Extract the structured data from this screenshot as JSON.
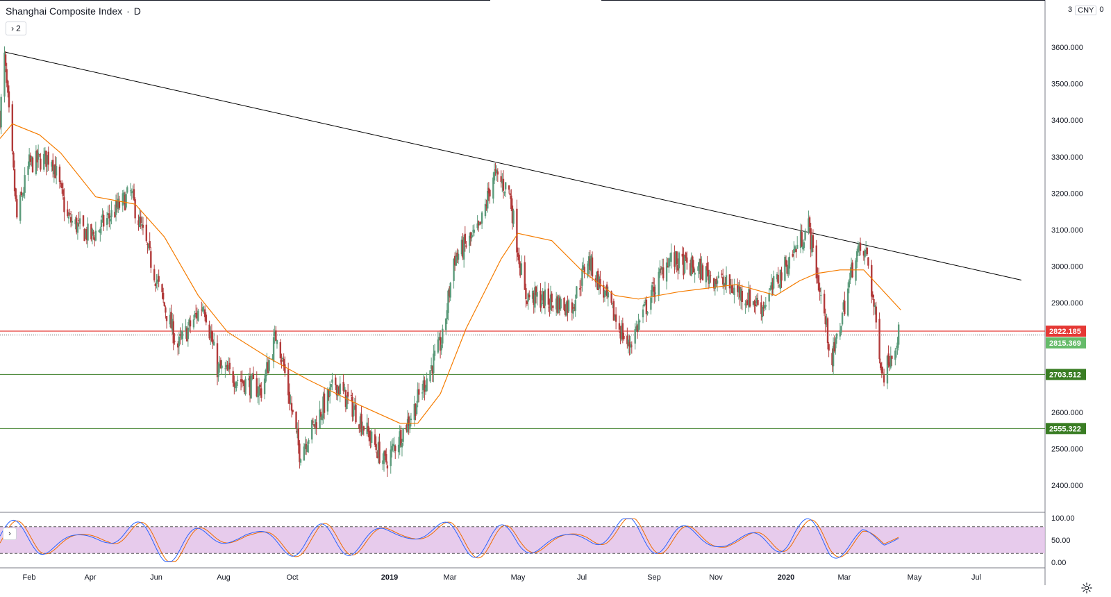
{
  "header": {
    "symbol_name": "Shanghai Composite Index",
    "separator": "·",
    "interval": "D",
    "legend_toggle_label": "2",
    "currency_prefix": "3",
    "currency": "CNY",
    "currency_suffix": "0"
  },
  "colors": {
    "up": "#26a69a",
    "down": "#ef5350",
    "up_body": "#5b9a7a",
    "down_body": "#b23a3a",
    "ma": "#f57c00",
    "trendline": "#000000",
    "resistance": "#e53935",
    "support": "#3a7d24",
    "last_price_tag": "#66bb6a",
    "stoch_bg": "#e1bee7",
    "stoch_k": "#2962ff",
    "stoch_d": "#ef6c00"
  },
  "price_axis": {
    "ticks": [
      "3600.000",
      "3500.000",
      "3400.000",
      "3300.000",
      "3200.000",
      "3100.000",
      "3000.000",
      "2900.000",
      "2600.000",
      "2500.000",
      "2400.000"
    ],
    "range": [
      2340,
      3700
    ]
  },
  "price_tags": [
    {
      "value": "2822.185",
      "type": "resistance"
    },
    {
      "value": "2815.369",
      "type": "last"
    },
    {
      "value": "2703.512",
      "type": "support"
    },
    {
      "value": "2555.322",
      "type": "support"
    }
  ],
  "time_axis": {
    "labels": [
      "Feb",
      "Apr",
      "Jun",
      "Aug",
      "Oct",
      "2019",
      "Mar",
      "May",
      "Jul",
      "Sep",
      "Nov",
      "2020",
      "Mar",
      "May",
      "Jul"
    ],
    "bold": [
      "2019",
      "2020"
    ]
  },
  "stochastic": {
    "ticks": [
      "100.00",
      "50.00",
      "0.00"
    ],
    "upper_band": 80,
    "lower_band": 20
  },
  "chart_data": {
    "type": "candlestick",
    "symbol": "Shanghai Composite Index",
    "interval": "D",
    "x_range": [
      "2018-01-25",
      "2020-08-10"
    ],
    "y_range": [
      2340,
      3700
    ],
    "horizontal_levels": [
      2822.185,
      2703.512,
      2555.322
    ],
    "last_price": 2815.369,
    "trendline": [
      {
        "date": "2018-01-29",
        "price": 3587
      },
      {
        "date": "2020-07-20",
        "price": 2962
      }
    ],
    "close_path": [
      [
        "2018-01-25",
        3410
      ],
      [
        "2018-01-29",
        3570
      ],
      [
        "2018-02-09",
        3130
      ],
      [
        "2018-02-20",
        3280
      ],
      [
        "2018-03-12",
        3300
      ],
      [
        "2018-03-26",
        3130
      ],
      [
        "2018-04-16",
        3080
      ],
      [
        "2018-05-21",
        3200
      ],
      [
        "2018-06-19",
        2900
      ],
      [
        "2018-07-02",
        2780
      ],
      [
        "2018-07-25",
        2900
      ],
      [
        "2018-08-06",
        2720
      ],
      [
        "2018-09-14",
        2660
      ],
      [
        "2018-09-28",
        2820
      ],
      [
        "2018-10-18",
        2490
      ],
      [
        "2018-11-19",
        2680
      ],
      [
        "2018-12-07",
        2600
      ],
      [
        "2019-01-02",
        2460
      ],
      [
        "2019-01-25",
        2590
      ],
      [
        "2019-02-22",
        2800
      ],
      [
        "2019-03-04",
        3020
      ],
      [
        "2019-03-27",
        3100
      ],
      [
        "2019-04-08",
        3250
      ],
      [
        "2019-04-22",
        3210
      ],
      [
        "2019-05-06",
        2920
      ],
      [
        "2019-06-17",
        2890
      ],
      [
        "2019-07-01",
        3020
      ],
      [
        "2019-08-06",
        2780
      ],
      [
        "2019-09-10",
        3020
      ],
      [
        "2019-10-15",
        2980
      ],
      [
        "2019-12-03",
        2890
      ],
      [
        "2020-01-13",
        3110
      ],
      [
        "2020-02-03",
        2740
      ],
      [
        "2020-02-24",
        3040
      ],
      [
        "2020-03-05",
        3030
      ],
      [
        "2020-03-19",
        2700
      ],
      [
        "2020-03-27",
        2770
      ],
      [
        "2020-04-02",
        2815
      ]
    ],
    "moving_average": [
      [
        "2018-01-25",
        3350
      ],
      [
        "2018-02-05",
        3390
      ],
      [
        "2018-03-01",
        3360
      ],
      [
        "2018-03-20",
        3310
      ],
      [
        "2018-04-20",
        3190
      ],
      [
        "2018-05-25",
        3170
      ],
      [
        "2018-06-20",
        3080
      ],
      [
        "2018-07-20",
        2920
      ],
      [
        "2018-08-15",
        2820
      ],
      [
        "2018-09-20",
        2750
      ],
      [
        "2018-10-25",
        2690
      ],
      [
        "2018-12-10",
        2620
      ],
      [
        "2019-01-15",
        2570
      ],
      [
        "2019-01-31",
        2570
      ],
      [
        "2019-02-20",
        2650
      ],
      [
        "2019-03-15",
        2830
      ],
      [
        "2019-04-15",
        3020
      ],
      [
        "2019-04-30",
        3090
      ],
      [
        "2019-05-30",
        3070
      ],
      [
        "2019-06-25",
        2990
      ],
      [
        "2019-07-25",
        2920
      ],
      [
        "2019-08-15",
        2910
      ],
      [
        "2019-09-20",
        2930
      ],
      [
        "2019-11-10",
        2950
      ],
      [
        "2019-12-15",
        2920
      ],
      [
        "2020-01-05",
        2960
      ],
      [
        "2020-01-20",
        2980
      ],
      [
        "2020-02-10",
        2990
      ],
      [
        "2020-03-02",
        2990
      ],
      [
        "2020-03-20",
        2930
      ],
      [
        "2020-04-04",
        2880
      ]
    ],
    "stochastic_path": [
      [
        "2018-01-25",
        80
      ],
      [
        "2018-03-01",
        20
      ],
      [
        "2018-05-01",
        90
      ],
      [
        "2018-07-01",
        20
      ],
      [
        "2018-09-01",
        85
      ],
      [
        "2018-11-01",
        15
      ],
      [
        "2019-01-01",
        90
      ],
      [
        "2019-03-01",
        95
      ],
      [
        "2019-05-01",
        10
      ],
      [
        "2019-07-01",
        85
      ],
      [
        "2019-09-01",
        95
      ],
      [
        "2019-11-01",
        25
      ],
      [
        "2020-01-01",
        95
      ],
      [
        "2020-02-01",
        5
      ],
      [
        "2020-03-01",
        90
      ],
      [
        "2020-03-20",
        5
      ],
      [
        "2020-04-02",
        98
      ]
    ]
  }
}
